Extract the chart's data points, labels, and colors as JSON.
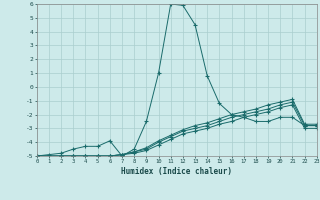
{
  "title": "",
  "xlabel": "Humidex (Indice chaleur)",
  "background_color": "#cdeaea",
  "grid_color": "#aacece",
  "line_color": "#1a6b6b",
  "xlim": [
    0,
    23
  ],
  "ylim": [
    -5,
    6
  ],
  "xticks": [
    0,
    1,
    2,
    3,
    4,
    5,
    6,
    7,
    8,
    9,
    10,
    11,
    12,
    13,
    14,
    15,
    16,
    17,
    18,
    19,
    20,
    21,
    22,
    23
  ],
  "yticks": [
    -5,
    -4,
    -3,
    -2,
    -1,
    0,
    1,
    2,
    3,
    4,
    5,
    6
  ],
  "series": [
    {
      "x": [
        0,
        1,
        2,
        3,
        4,
        5,
        6,
        7,
        8,
        9,
        10,
        11,
        12,
        13,
        14,
        15,
        16,
        17,
        18,
        19,
        20,
        21,
        22,
        23
      ],
      "y": [
        -5,
        -4.9,
        -4.8,
        -4.5,
        -4.3,
        -4.3,
        -3.9,
        -5,
        -4.5,
        -2.5,
        1,
        6,
        5.9,
        4.5,
        0.8,
        -1.2,
        -2,
        -2.2,
        -2.5,
        -2.5,
        -2.2,
        -2.2,
        -2.8,
        -2.8
      ]
    },
    {
      "x": [
        0,
        2,
        3,
        4,
        5,
        6,
        7,
        8,
        9,
        10,
        11,
        12,
        13,
        14,
        15,
        16,
        17,
        18,
        19,
        20,
        21,
        22,
        23
      ],
      "y": [
        -5,
        -5,
        -5,
        -5,
        -5,
        -5,
        -4.9,
        -4.8,
        -4.6,
        -4.2,
        -3.8,
        -3.4,
        -3.2,
        -3.0,
        -2.7,
        -2.5,
        -2.2,
        -2.0,
        -1.8,
        -1.5,
        -1.3,
        -3.0,
        -3.0
      ]
    },
    {
      "x": [
        0,
        2,
        3,
        4,
        5,
        6,
        7,
        8,
        9,
        10,
        11,
        12,
        13,
        14,
        15,
        16,
        17,
        18,
        19,
        20,
        21,
        22,
        23
      ],
      "y": [
        -5,
        -5,
        -5,
        -5,
        -5,
        -5,
        -4.9,
        -4.7,
        -4.5,
        -4.0,
        -3.6,
        -3.2,
        -3.0,
        -2.8,
        -2.5,
        -2.2,
        -2.0,
        -1.8,
        -1.6,
        -1.3,
        -1.1,
        -2.8,
        -2.8
      ]
    },
    {
      "x": [
        0,
        2,
        3,
        4,
        5,
        6,
        7,
        8,
        9,
        10,
        11,
        12,
        13,
        14,
        15,
        16,
        17,
        18,
        19,
        20,
        21,
        22,
        23
      ],
      "y": [
        -5,
        -5,
        -5,
        -5,
        -5,
        -5,
        -4.9,
        -4.7,
        -4.4,
        -3.9,
        -3.5,
        -3.1,
        -2.8,
        -2.6,
        -2.3,
        -2.0,
        -1.8,
        -1.6,
        -1.3,
        -1.1,
        -0.9,
        -2.7,
        -2.7
      ]
    }
  ]
}
